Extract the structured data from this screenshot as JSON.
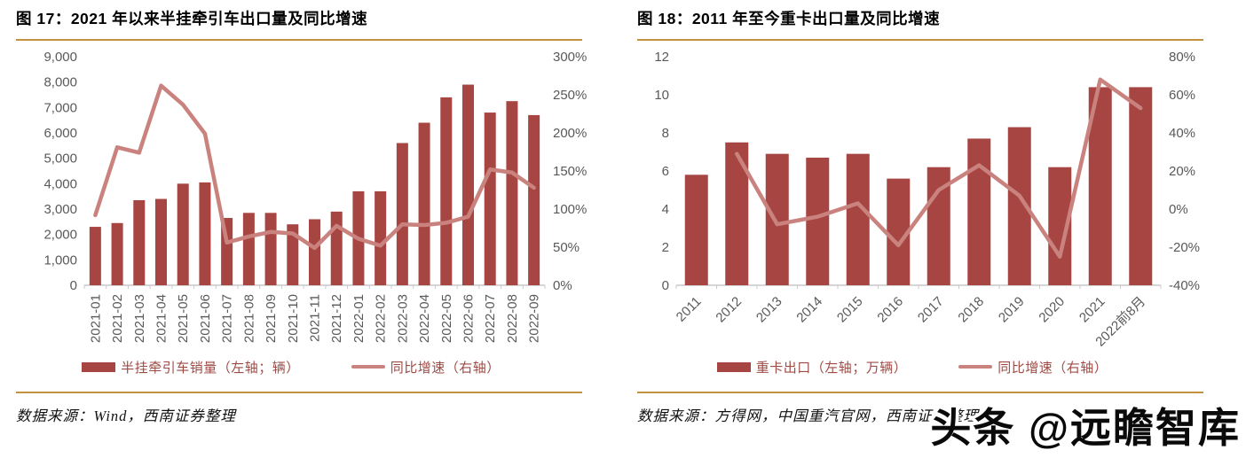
{
  "page": {
    "background": "#ffffff",
    "accent_rule_color": "#C3913F",
    "watermark": "头条 @远瞻智库"
  },
  "figures": [
    {
      "title": "图 17：2021 年以来半挂牵引车出口量及同比增速",
      "legend": [
        {
          "label": "半挂牵引车销量（左轴；辆）",
          "type": "bar"
        },
        {
          "label": "同比增速（右轴）",
          "type": "line"
        }
      ],
      "source": "数据来源：Wind，西南证券整理"
    },
    {
      "title": "图 18：2011 年至今重卡出口量及同比增速",
      "legend": [
        {
          "label": "重卡出口（左轴；万辆）",
          "type": "bar"
        },
        {
          "label": "同比增速（右轴）",
          "type": "line"
        }
      ],
      "source": "数据来源：方得网，中国重汽官网，西南证券整理"
    }
  ],
  "chart_data": [
    {
      "type": "bar",
      "title": "图 17：2021 年以来半挂牵引车出口量及同比增速",
      "categories": [
        "2021-01",
        "2021-02",
        "2021-03",
        "2021-04",
        "2021-05",
        "2021-06",
        "2021-07",
        "2021-08",
        "2021-09",
        "2021-10",
        "2021-11",
        "2021-12",
        "2022-01",
        "2022-02",
        "2022-03",
        "2022-04",
        "2022-05",
        "2022-06",
        "2022-07",
        "2022-08",
        "2022-09"
      ],
      "series": [
        {
          "name": "半挂牵引车销量（左轴；辆）",
          "type": "bar",
          "axis": "left",
          "values": [
            2300,
            2450,
            3350,
            3400,
            4000,
            4050,
            2650,
            2850,
            2850,
            2400,
            2600,
            2900,
            3700,
            3700,
            5600,
            6400,
            7400,
            7900,
            6800,
            7250,
            6700
          ]
        },
        {
          "name": "同比增速（右轴）",
          "type": "line",
          "axis": "right",
          "values": [
            92,
            181,
            174,
            262,
            237,
            199,
            56,
            64,
            70,
            68,
            49,
            78,
            61,
            52,
            80,
            79,
            82,
            90,
            152,
            148,
            128
          ]
        }
      ],
      "left_axis": {
        "min": 0,
        "max": 9000,
        "step": 1000
      },
      "right_axis": {
        "min": 0,
        "max": 300,
        "step": 50
      },
      "left_ticks": [
        "0",
        "1,000",
        "2,000",
        "3,000",
        "4,000",
        "5,000",
        "6,000",
        "7,000",
        "8,000",
        "9,000"
      ],
      "right_ticks": [
        "0%",
        "50%",
        "100%",
        "150%",
        "200%",
        "250%",
        "300%"
      ],
      "x_label_rotation": -90,
      "grid": false,
      "legend_position": "bottom",
      "colors": {
        "bar": "#A64542",
        "line": "#C9827E"
      }
    },
    {
      "type": "bar",
      "title": "图 18：2011 年至今重卡出口量及同比增速",
      "categories": [
        "2011",
        "2012",
        "2013",
        "2014",
        "2015",
        "2016",
        "2017",
        "2018",
        "2019",
        "2020",
        "2021",
        "2022前8月"
      ],
      "series": [
        {
          "name": "重卡出口（左轴；万辆）",
          "type": "bar",
          "axis": "left",
          "values": [
            5.8,
            7.5,
            6.9,
            6.7,
            6.9,
            5.6,
            6.2,
            7.7,
            8.3,
            6.2,
            10.4,
            10.4
          ]
        },
        {
          "name": "同比增速（右轴）",
          "type": "line",
          "axis": "right",
          "values": [
            null,
            29,
            -8,
            -4,
            3,
            -19,
            10,
            23,
            7,
            -25,
            68,
            53
          ]
        }
      ],
      "left_axis": {
        "min": 0,
        "max": 12,
        "step": 2
      },
      "right_axis": {
        "min": -40,
        "max": 80,
        "step": 20
      },
      "left_ticks": [
        "0",
        "2",
        "4",
        "6",
        "8",
        "10",
        "12"
      ],
      "right_ticks": [
        "-40%",
        "-20%",
        "0%",
        "20%",
        "40%",
        "60%",
        "80%"
      ],
      "x_label_rotation": -45,
      "grid": false,
      "legend_position": "bottom",
      "colors": {
        "bar": "#A64542",
        "line": "#C9827E"
      }
    }
  ]
}
